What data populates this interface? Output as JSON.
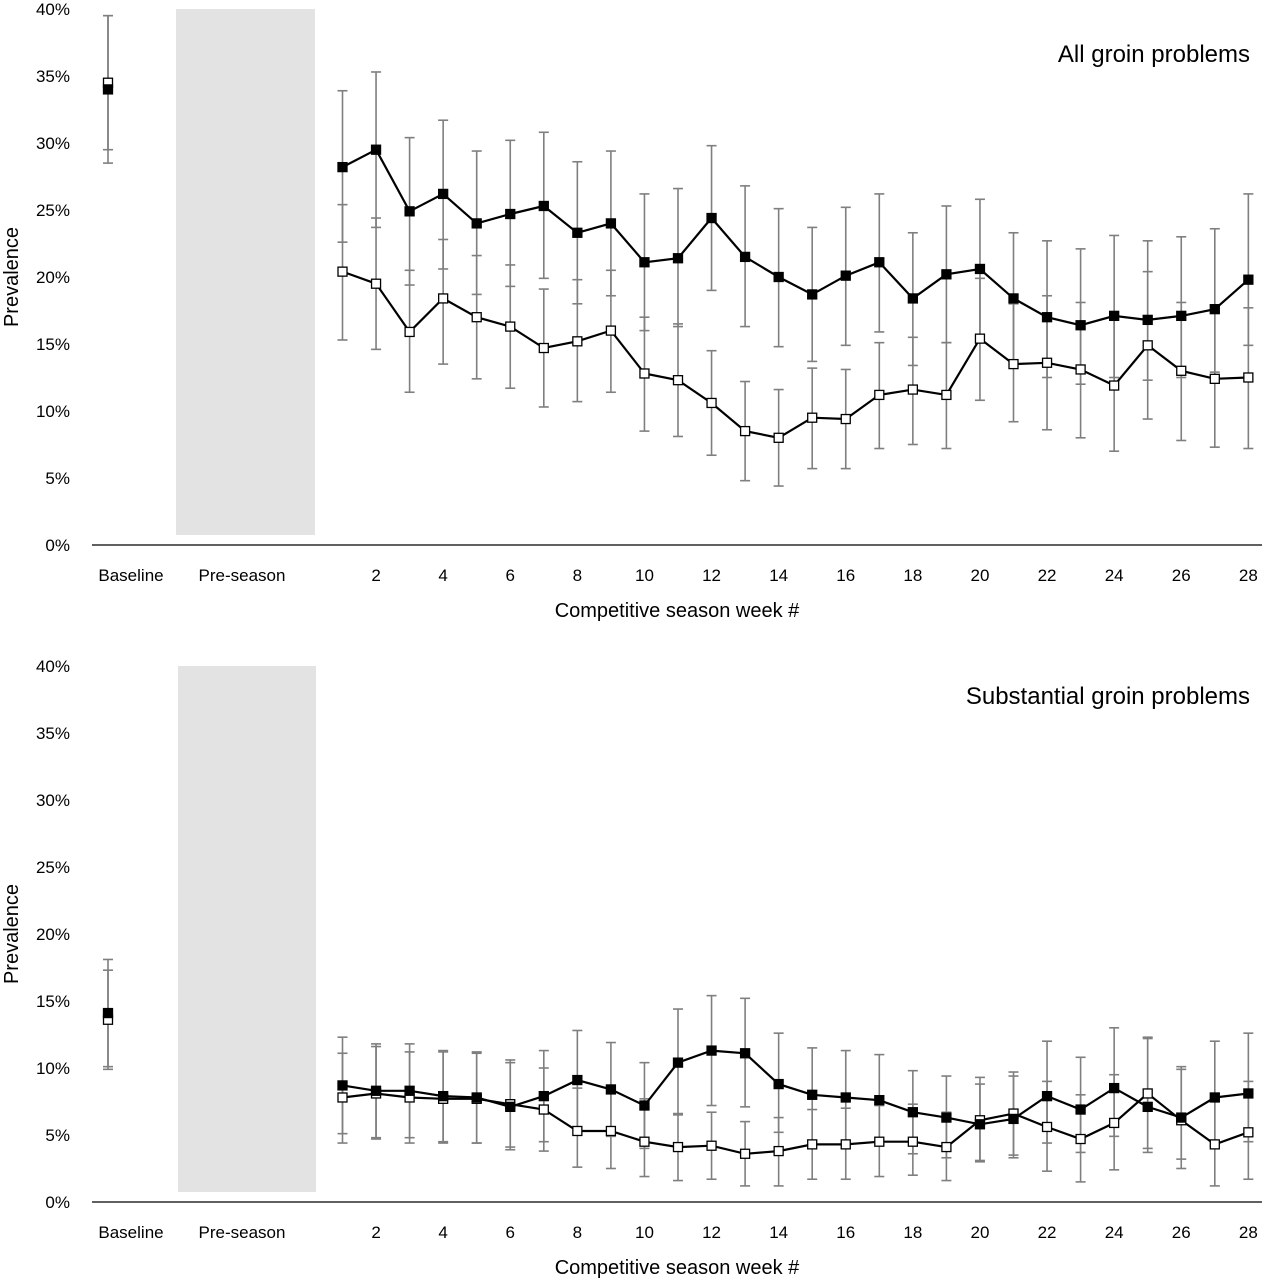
{
  "chart_data": [
    {
      "type": "line",
      "title": "All groin problems",
      "xlabel": "Competitive season week #",
      "ylabel": "Prevalence",
      "ylim": [
        0,
        0.4
      ],
      "y_ticks": [
        "0%",
        "5%",
        "10%",
        "15%",
        "20%",
        "25%",
        "30%",
        "35%",
        "40%"
      ],
      "x_tick_labels": [
        "Baseline",
        "Pre-season",
        "2",
        "4",
        "6",
        "8",
        "10",
        "12",
        "14",
        "16",
        "18",
        "20",
        "22",
        "24",
        "26",
        "28"
      ],
      "preseason_band": true,
      "grid": false,
      "baseline": [
        {
          "marker": "filled",
          "value": 0.34,
          "err_low": 0.285,
          "err_high": 0.395
        },
        {
          "marker": "open",
          "value": 0.345,
          "err_low": 0.295,
          "err_high": 0.395
        }
      ],
      "x": [
        1,
        2,
        3,
        4,
        5,
        6,
        7,
        8,
        9,
        10,
        11,
        12,
        13,
        14,
        15,
        16,
        17,
        18,
        19,
        20,
        21,
        22,
        23,
        24,
        25,
        26,
        27,
        28
      ],
      "series": [
        {
          "marker": "filled",
          "values": [
            0.282,
            0.295,
            0.249,
            0.262,
            0.24,
            0.247,
            0.253,
            0.233,
            0.24,
            0.211,
            0.214,
            0.244,
            0.215,
            0.2,
            0.187,
            0.201,
            0.211,
            0.184,
            0.202,
            0.206,
            0.184,
            0.17,
            0.164,
            0.171,
            0.168,
            0.171,
            0.176,
            0.198
          ],
          "err_low": [
            0.226,
            0.237,
            0.194,
            0.206,
            0.187,
            0.193,
            0.199,
            0.18,
            0.186,
            0.16,
            0.163,
            0.19,
            0.163,
            0.148,
            0.137,
            0.149,
            0.159,
            0.134,
            0.151,
            0.156,
            0.137,
            0.125,
            0.12,
            0.125,
            0.123,
            0.125,
            0.129,
            0.149
          ],
          "err_high": [
            0.339,
            0.353,
            0.304,
            0.317,
            0.294,
            0.302,
            0.308,
            0.286,
            0.294,
            0.262,
            0.266,
            0.298,
            0.268,
            0.251,
            0.237,
            0.252,
            0.262,
            0.233,
            0.253,
            0.258,
            0.233,
            0.227,
            0.221,
            0.231,
            0.227,
            0.23,
            0.236,
            0.262
          ]
        },
        {
          "marker": "open",
          "values": [
            0.204,
            0.195,
            0.159,
            0.184,
            0.17,
            0.163,
            0.147,
            0.152,
            0.16,
            0.128,
            0.123,
            0.106,
            0.085,
            0.08,
            0.095,
            0.094,
            0.112,
            0.116,
            0.112,
            0.154,
            0.135,
            0.136,
            0.131,
            0.119,
            0.149,
            0.13,
            0.124,
            0.125
          ],
          "err_low": [
            0.153,
            0.146,
            0.114,
            0.135,
            0.124,
            0.117,
            0.103,
            0.107,
            0.114,
            0.085,
            0.081,
            0.067,
            0.048,
            0.044,
            0.057,
            0.057,
            0.072,
            0.075,
            0.072,
            0.108,
            0.092,
            0.086,
            0.08,
            0.07,
            0.094,
            0.078,
            0.073,
            0.072
          ],
          "err_high": [
            0.254,
            0.244,
            0.205,
            0.228,
            0.216,
            0.209,
            0.191,
            0.198,
            0.205,
            0.17,
            0.165,
            0.145,
            0.122,
            0.116,
            0.132,
            0.131,
            0.151,
            0.155,
            0.151,
            0.199,
            0.18,
            0.186,
            0.181,
            0.172,
            0.204,
            0.181,
            0.174,
            0.177
          ]
        }
      ]
    },
    {
      "type": "line",
      "title": "Substantial groin problems",
      "xlabel": "Competitive season week #",
      "ylabel": "Prevalence",
      "ylim": [
        0,
        0.4
      ],
      "y_ticks": [
        "0%",
        "5%",
        "10%",
        "15%",
        "20%",
        "25%",
        "30%",
        "35%",
        "40%"
      ],
      "x_tick_labels": [
        "Baseline",
        "Pre-season",
        "2",
        "4",
        "6",
        "8",
        "10",
        "12",
        "14",
        "16",
        "18",
        "20",
        "22",
        "24",
        "26",
        "28"
      ],
      "preseason_band": true,
      "grid": false,
      "baseline": [
        {
          "marker": "filled",
          "value": 0.141,
          "err_low": 0.101,
          "err_high": 0.181
        },
        {
          "marker": "open",
          "value": 0.136,
          "err_low": 0.099,
          "err_high": 0.173
        }
      ],
      "x": [
        1,
        2,
        3,
        4,
        5,
        6,
        7,
        8,
        9,
        10,
        11,
        12,
        13,
        14,
        15,
        16,
        17,
        18,
        19,
        20,
        21,
        22,
        23,
        24,
        25,
        26,
        27,
        28
      ],
      "series": [
        {
          "marker": "filled",
          "values": [
            0.087,
            0.083,
            0.083,
            0.079,
            0.078,
            0.071,
            0.079,
            0.091,
            0.084,
            0.072,
            0.104,
            0.113,
            0.111,
            0.088,
            0.08,
            0.078,
            0.076,
            0.067,
            0.063,
            0.058,
            0.062,
            0.079,
            0.069,
            0.085,
            0.071,
            0.063,
            0.078,
            0.081
          ],
          "err_low": [
            0.051,
            0.048,
            0.048,
            0.045,
            0.044,
            0.039,
            0.045,
            0.056,
            0.049,
            0.04,
            0.065,
            0.072,
            0.071,
            0.052,
            0.046,
            0.044,
            0.043,
            0.036,
            0.033,
            0.03,
            0.033,
            0.044,
            0.037,
            0.049,
            0.04,
            0.032,
            0.042,
            0.045
          ],
          "err_high": [
            0.123,
            0.118,
            0.118,
            0.113,
            0.112,
            0.104,
            0.113,
            0.128,
            0.119,
            0.104,
            0.144,
            0.154,
            0.152,
            0.126,
            0.115,
            0.113,
            0.11,
            0.098,
            0.094,
            0.088,
            0.094,
            0.12,
            0.108,
            0.13,
            0.123,
            0.101,
            0.12,
            0.126
          ]
        },
        {
          "marker": "open",
          "values": [
            0.078,
            0.081,
            0.078,
            0.077,
            0.077,
            0.073,
            0.069,
            0.053,
            0.053,
            0.045,
            0.041,
            0.042,
            0.036,
            0.038,
            0.043,
            0.043,
            0.045,
            0.045,
            0.041,
            0.061,
            0.066,
            0.056,
            0.047,
            0.059,
            0.081,
            0.061,
            0.043,
            0.052
          ],
          "err_low": [
            0.044,
            0.047,
            0.044,
            0.044,
            0.044,
            0.041,
            0.038,
            0.026,
            0.025,
            0.019,
            0.016,
            0.017,
            0.012,
            0.012,
            0.017,
            0.017,
            0.019,
            0.02,
            0.016,
            0.031,
            0.035,
            0.023,
            0.015,
            0.024,
            0.037,
            0.025,
            0.012,
            0.017
          ],
          "err_high": [
            0.111,
            0.116,
            0.112,
            0.112,
            0.111,
            0.106,
            0.1,
            0.085,
            0.086,
            0.077,
            0.066,
            0.067,
            0.06,
            0.063,
            0.069,
            0.07,
            0.072,
            0.073,
            0.067,
            0.093,
            0.097,
            0.09,
            0.08,
            0.095,
            0.122,
            0.099,
            0.077,
            0.09
          ]
        }
      ]
    }
  ]
}
